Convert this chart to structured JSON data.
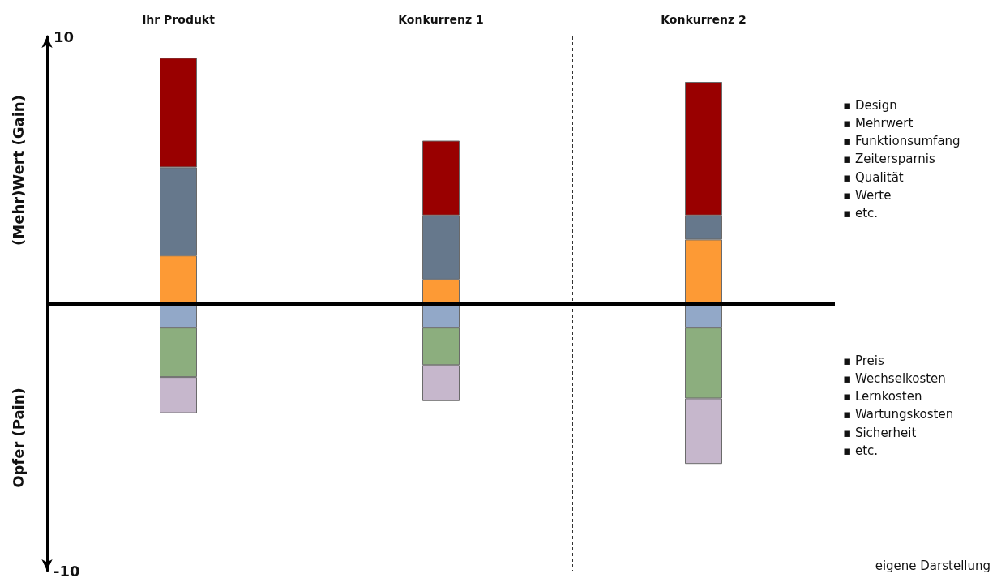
{
  "chart_data": {
    "type": "bar",
    "stacked": true,
    "categories": [
      "Ihr Produkt",
      "Konkurrenz 1",
      "Konkurrenz 2"
    ],
    "series": [
      {
        "color": "#fd9a35",
        "values": [
          1.8,
          0.9,
          2.4
        ]
      },
      {
        "color": "#66788c",
        "values": [
          3.3,
          2.4,
          0.9
        ]
      },
      {
        "color": "#990000",
        "values": [
          4.1,
          2.8,
          5.0
        ]
      },
      {
        "color": "#92a8c8",
        "values": [
          -0.9,
          -0.9,
          -0.9
        ]
      },
      {
        "color": "#8cae7e",
        "values": [
          -1.85,
          -1.4,
          -2.65
        ]
      },
      {
        "color": "#c6b7cc",
        "values": [
          -1.35,
          -1.35,
          -2.45
        ]
      }
    ],
    "ylim": [
      -10,
      10
    ],
    "yticks": [
      -10,
      10
    ],
    "grid": "x",
    "ref_lines": [
      {
        "axis": "y",
        "value": 0,
        "color": "#000000"
      }
    ],
    "annotations": [
      "(Mehr)Wert (Gain)",
      "Opfer (Pain)",
      "eigene Darstellung",
      "▪ Design",
      "▪ Mehrwert",
      "▪ Funktionsumfang",
      "▪ Zeitersparnis",
      "▪ Qualität",
      "▪ Werte",
      "▪ etc.",
      "▪ Preis",
      "▪ Wechselkosten",
      "▪ Lernkosten",
      "▪ Wartungskosten",
      "▪ Sicherheit",
      "▪ etc."
    ]
  }
}
